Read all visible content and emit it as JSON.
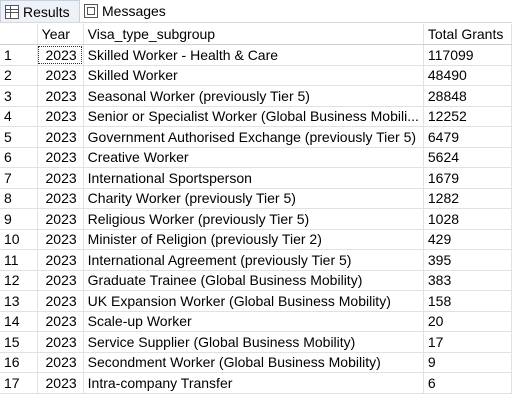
{
  "tabs": [
    {
      "label": "Results",
      "icon": "grid-icon"
    },
    {
      "label": "Messages",
      "icon": "messages-icon"
    }
  ],
  "table": {
    "columns": [
      "",
      "Year",
      "Visa_type_subgroup",
      "Total Grants"
    ],
    "rows": [
      {
        "n": "1",
        "year": "2023",
        "subgroup": "Skilled Worker - Health & Care",
        "grants": "117099"
      },
      {
        "n": "2",
        "year": "2023",
        "subgroup": "Skilled Worker",
        "grants": "48490"
      },
      {
        "n": "3",
        "year": "2023",
        "subgroup": "Seasonal Worker (previously Tier 5)",
        "grants": "28848"
      },
      {
        "n": "4",
        "year": "2023",
        "subgroup": "Senior or Specialist Worker (Global Business Mobili...",
        "grants": "12252"
      },
      {
        "n": "5",
        "year": "2023",
        "subgroup": "Government Authorised Exchange (previously Tier 5)",
        "grants": "6479"
      },
      {
        "n": "6",
        "year": "2023",
        "subgroup": "Creative Worker",
        "grants": "5624"
      },
      {
        "n": "7",
        "year": "2023",
        "subgroup": "International Sportsperson",
        "grants": "1679"
      },
      {
        "n": "8",
        "year": "2023",
        "subgroup": "Charity Worker (previously Tier 5)",
        "grants": "1282"
      },
      {
        "n": "9",
        "year": "2023",
        "subgroup": "Religious Worker (previously Tier 5)",
        "grants": "1028"
      },
      {
        "n": "10",
        "year": "2023",
        "subgroup": "Minister of Religion (previously Tier 2)",
        "grants": "429"
      },
      {
        "n": "11",
        "year": "2023",
        "subgroup": "International Agreement (previously Tier 5)",
        "grants": "395"
      },
      {
        "n": "12",
        "year": "2023",
        "subgroup": "Graduate Trainee (Global Business Mobility)",
        "grants": "383"
      },
      {
        "n": "13",
        "year": "2023",
        "subgroup": "UK Expansion Worker (Global Business Mobility)",
        "grants": "158"
      },
      {
        "n": "14",
        "year": "2023",
        "subgroup": "Scale-up Worker",
        "grants": "20"
      },
      {
        "n": "15",
        "year": "2023",
        "subgroup": "Service Supplier (Global Business Mobility)",
        "grants": "17"
      },
      {
        "n": "16",
        "year": "2023",
        "subgroup": "Secondment Worker (Global Business Mobility)",
        "grants": "9"
      },
      {
        "n": "17",
        "year": "2023",
        "subgroup": "Intra-company Transfer",
        "grants": "6"
      }
    ]
  }
}
